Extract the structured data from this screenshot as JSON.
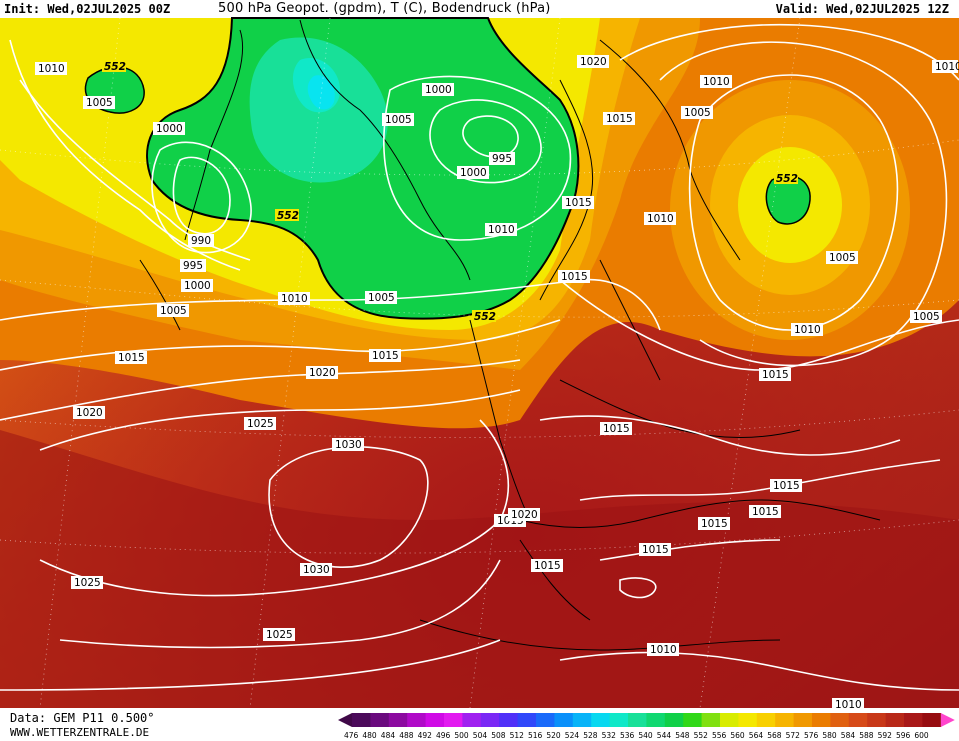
{
  "header": {
    "init": "Init: Wed,02JUL2025 00Z",
    "title": "500 hPa Geopot. (gpdm), T (C), Bodendruck (hPa)",
    "valid": "Valid: Wed,02JUL2025 12Z"
  },
  "footer": {
    "data_source": "Data: GEM P11 0.500°",
    "website": "WWW.WETTERZENTRALE.DE"
  },
  "legend": {
    "values": [
      "476",
      "480",
      "484",
      "488",
      "492",
      "496",
      "500",
      "504",
      "508",
      "512",
      "516",
      "520",
      "524",
      "528",
      "532",
      "536",
      "540",
      "544",
      "548",
      "552",
      "556",
      "560",
      "564",
      "568",
      "572",
      "576",
      "580",
      "584",
      "588",
      "592",
      "596",
      "600"
    ],
    "colors": [
      "#4b0a5a",
      "#6a0a7e",
      "#8c0aa0",
      "#b00ac8",
      "#d00ae6",
      "#e21af0",
      "#a020f0",
      "#7a28f5",
      "#5030f8",
      "#3048fa",
      "#1a6afa",
      "#0a90fa",
      "#08b4f8",
      "#08d8f0",
      "#10e8c8",
      "#18e098",
      "#10d870",
      "#10d048",
      "#30d818",
      "#80e010",
      "#d8ec00",
      "#f4e800",
      "#f8d000",
      "#f6b400",
      "#f09800",
      "#ea7c00",
      "#e06010",
      "#d64a18",
      "#c83818",
      "#b82818",
      "#a81818",
      "#960c10"
    ],
    "low_arrow_color": "#400848",
    "high_arrow_color": "#ff44cc"
  },
  "map": {
    "green_contour_label": "552",
    "isobar_labels": [
      "1010",
      "1005",
      "1000",
      "1000",
      "1005",
      "995",
      "1000",
      "1010",
      "1020",
      "1015",
      "1010",
      "1005",
      "1015",
      "1010",
      "1005",
      "1015",
      "1010",
      "1005",
      "1015",
      "1015",
      "990",
      "995",
      "1000",
      "1005",
      "1010",
      "1005",
      "1015",
      "1015",
      "1020",
      "1020",
      "1025",
      "1030",
      "1030",
      "1025",
      "1025",
      "1015",
      "1015",
      "1015",
      "1015",
      "1015",
      "1015",
      "1020",
      "1015",
      "1015",
      "1010",
      "1010",
      "1005",
      "1010"
    ],
    "geopotential_labels": [
      "552",
      "552",
      "552",
      "552"
    ]
  }
}
